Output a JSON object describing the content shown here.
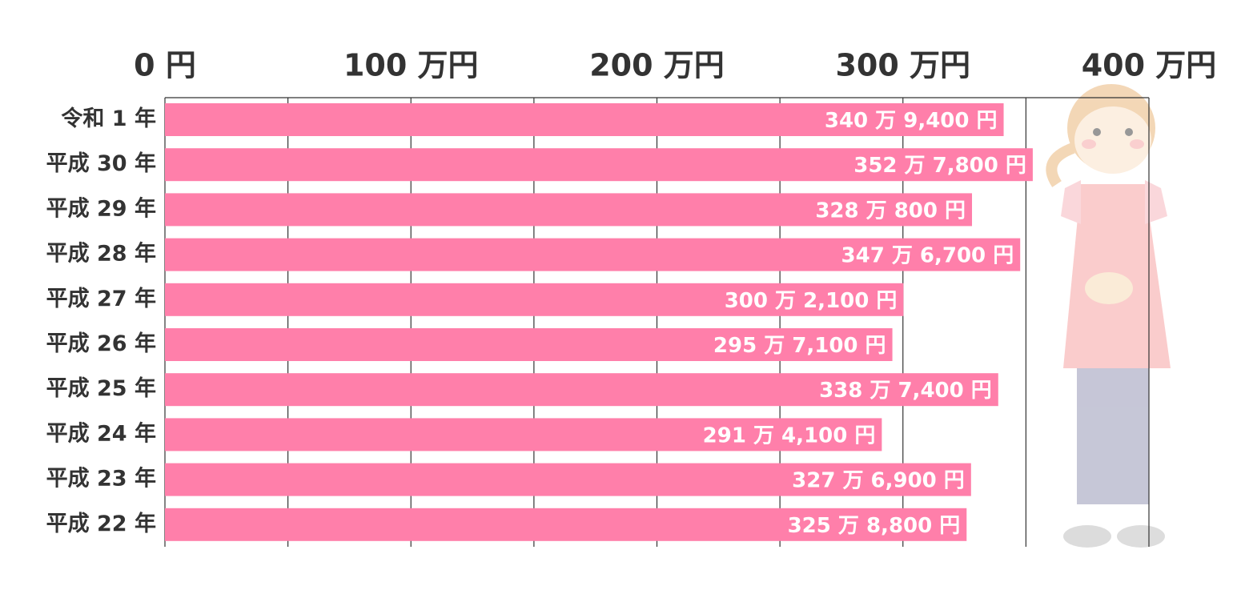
{
  "chart_data": {
    "type": "bar",
    "orientation": "horizontal",
    "categories": [
      "令和 1 年",
      "平成 30 年",
      "平成 29 年",
      "平成 28 年",
      "平成 27 年",
      "平成 26 年",
      "平成 25 年",
      "平成 24 年",
      "平成 23 年",
      "平成 22 年"
    ],
    "values": [
      340.94,
      352.78,
      328.08,
      347.67,
      300.21,
      295.71,
      338.74,
      291.41,
      327.69,
      325.88
    ],
    "value_labels": [
      "340 万 9,400 円",
      "352 万 7,800 円",
      "328 万 800 円",
      "347 万 6,700 円",
      "300 万 2,100 円",
      "295 万 7,100 円",
      "338 万 7,400 円",
      "291 万 4,100 円",
      "327 万 6,900 円",
      "325 万 8,800 円"
    ],
    "color": "#ff7faa",
    "xlim": [
      0,
      400
    ],
    "xticks": [
      {
        "value": 0,
        "label": "0 円"
      },
      {
        "value": 100,
        "label": "100 万円"
      },
      {
        "value": 200,
        "label": "200 万円"
      },
      {
        "value": 300,
        "label": "300 万円"
      },
      {
        "value": 400,
        "label": "400 万円"
      }
    ],
    "xminor_ticks": [
      50,
      150,
      250,
      350
    ],
    "grid": true
  }
}
